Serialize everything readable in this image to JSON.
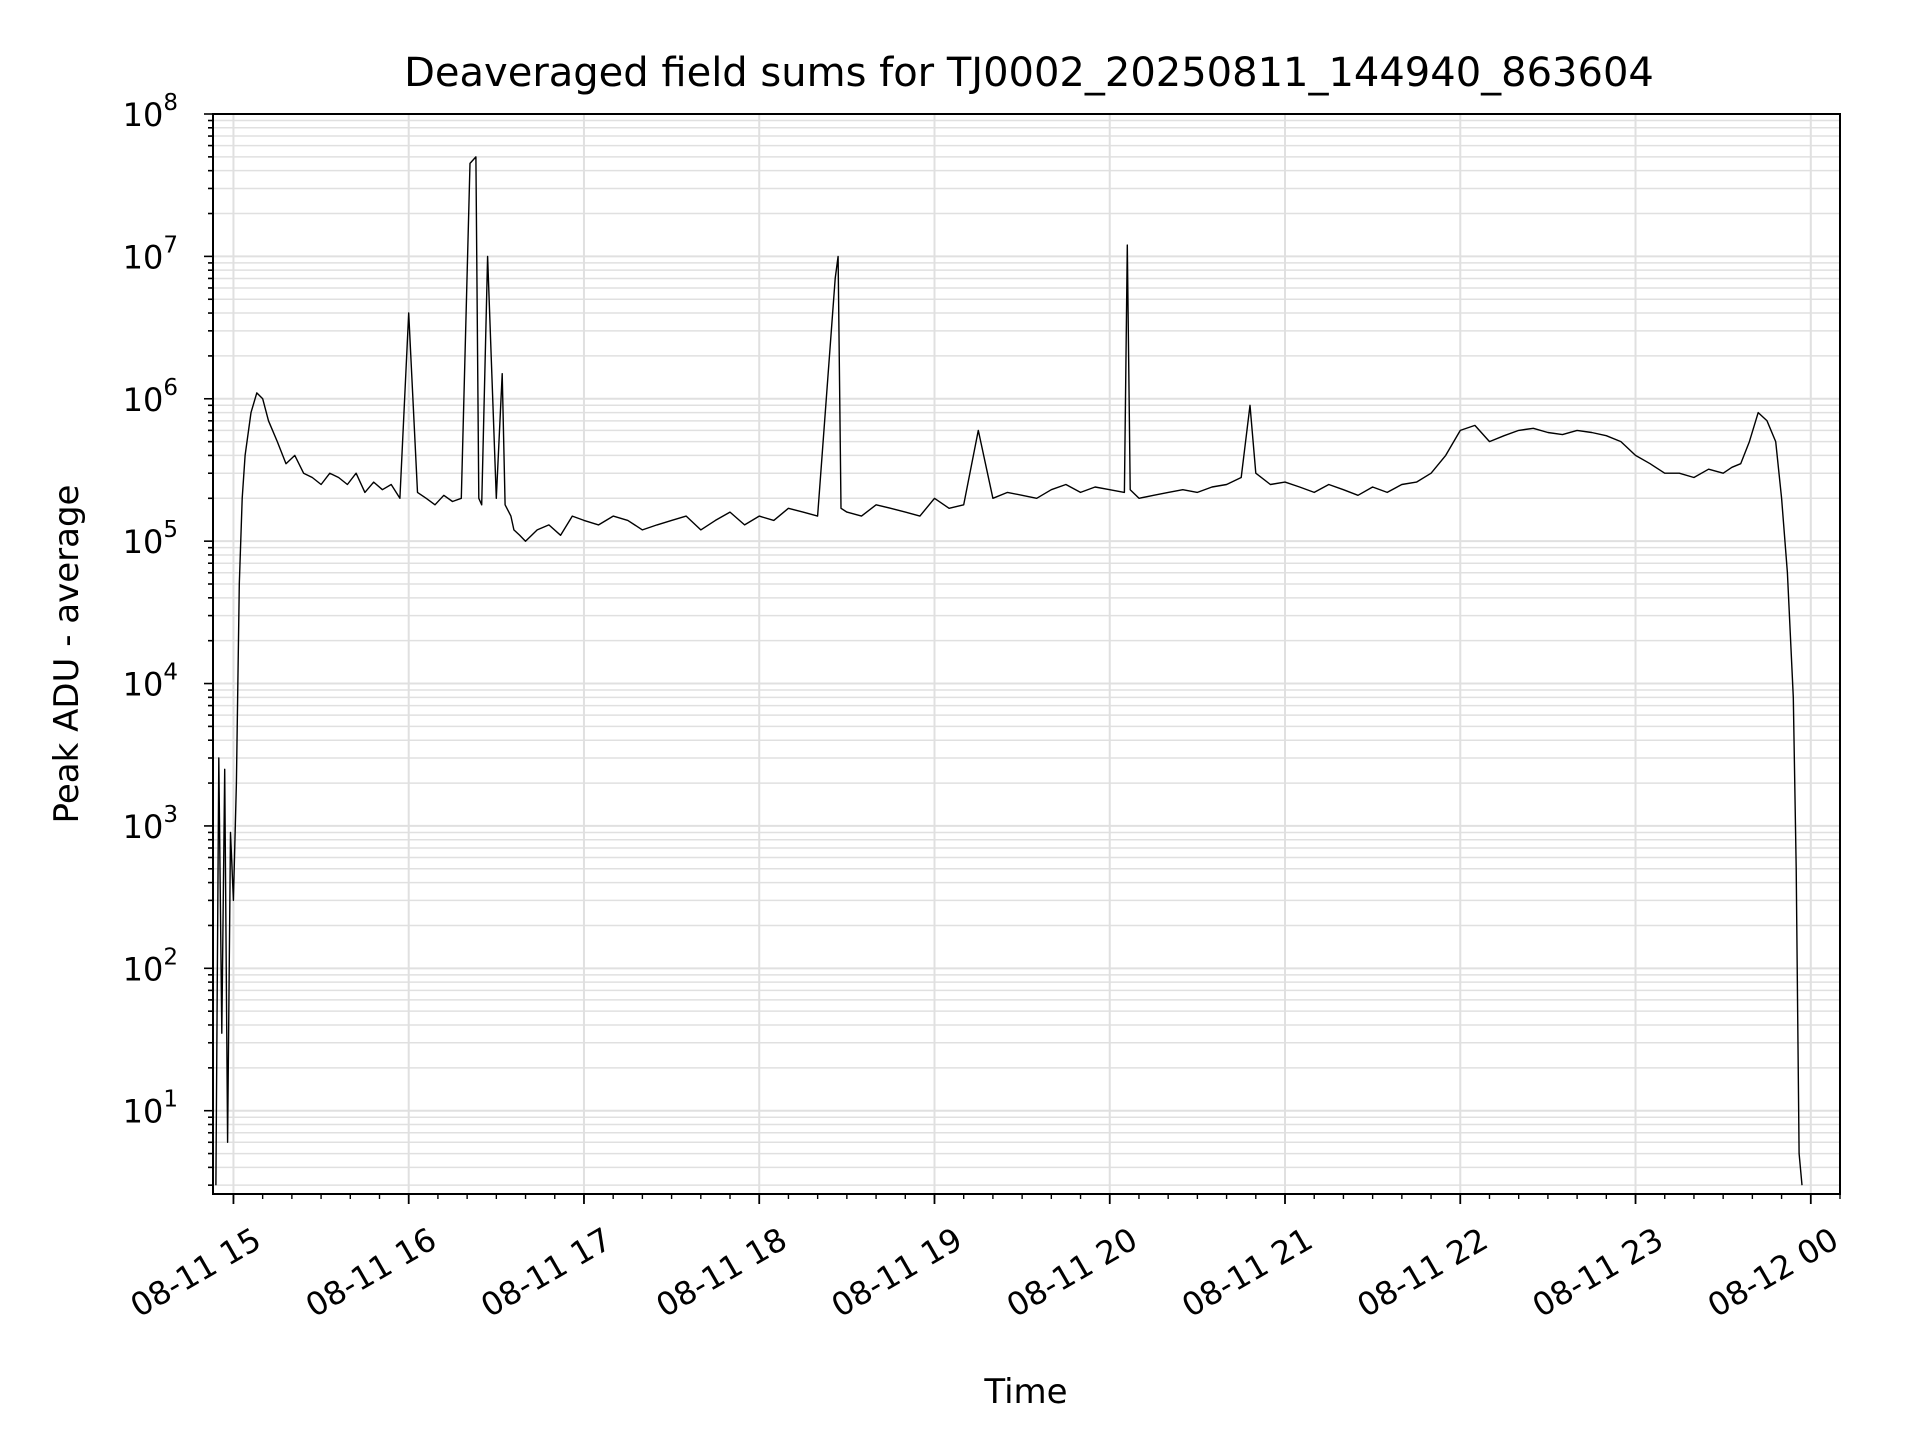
{
  "chart_data": {
    "type": "line",
    "title": "Deaveraged field sums for TJ0002_20250811_144940_863604",
    "xlabel": "Time",
    "ylabel": "Peak ADU - average",
    "yscale": "log",
    "xlim": [
      "2025-08-11 14:53",
      "2025-08-12 00:10"
    ],
    "ylim": [
      2.6,
      100000000
    ],
    "grid": true,
    "line_color": "#000000",
    "grid_color": "#e0e0e0",
    "x_ticks": [
      {
        "value": "2025-08-11 15:00",
        "label": "08-11 15"
      },
      {
        "value": "2025-08-11 16:00",
        "label": "08-11 16"
      },
      {
        "value": "2025-08-11 17:00",
        "label": "08-11 17"
      },
      {
        "value": "2025-08-11 18:00",
        "label": "08-11 18"
      },
      {
        "value": "2025-08-11 19:00",
        "label": "08-11 19"
      },
      {
        "value": "2025-08-11 20:00",
        "label": "08-11 20"
      },
      {
        "value": "2025-08-11 21:00",
        "label": "08-11 21"
      },
      {
        "value": "2025-08-11 22:00",
        "label": "08-11 22"
      },
      {
        "value": "2025-08-11 23:00",
        "label": "08-11 23"
      },
      {
        "value": "2025-08-12 00:00",
        "label": "08-12 00"
      }
    ],
    "y_ticks": [
      {
        "value": 10,
        "mantissa": "10",
        "exponent": "1"
      },
      {
        "value": 100,
        "mantissa": "10",
        "exponent": "2"
      },
      {
        "value": 1000,
        "mantissa": "10",
        "exponent": "3"
      },
      {
        "value": 10000,
        "mantissa": "10",
        "exponent": "4"
      },
      {
        "value": 100000,
        "mantissa": "10",
        "exponent": "5"
      },
      {
        "value": 1000000,
        "mantissa": "10",
        "exponent": "6"
      },
      {
        "value": 10000000,
        "mantissa": "10",
        "exponent": "7"
      },
      {
        "value": 100000000,
        "mantissa": "10",
        "exponent": "8"
      }
    ],
    "series": [
      {
        "x": [
          "2025-08-11 14:54",
          "2025-08-11 14:55",
          "2025-08-11 14:56",
          "2025-08-11 14:57",
          "2025-08-11 14:58",
          "2025-08-11 14:59",
          "2025-08-11 15:00",
          "2025-08-11 15:01",
          "2025-08-11 15:02",
          "2025-08-11 15:03",
          "2025-08-11 15:04",
          "2025-08-11 15:06",
          "2025-08-11 15:08",
          "2025-08-11 15:10",
          "2025-08-11 15:12",
          "2025-08-11 15:15",
          "2025-08-11 15:18",
          "2025-08-11 15:21",
          "2025-08-11 15:24",
          "2025-08-11 15:27",
          "2025-08-11 15:30",
          "2025-08-11 15:33",
          "2025-08-11 15:36",
          "2025-08-11 15:39",
          "2025-08-11 15:42",
          "2025-08-11 15:45",
          "2025-08-11 15:48",
          "2025-08-11 15:51",
          "2025-08-11 15:54",
          "2025-08-11 15:57",
          "2025-08-11 16:00",
          "2025-08-11 16:03",
          "2025-08-11 16:06",
          "2025-08-11 16:09",
          "2025-08-11 16:12",
          "2025-08-11 16:15",
          "2025-08-11 16:18",
          "2025-08-11 16:21",
          "2025-08-11 16:23",
          "2025-08-11 16:24",
          "2025-08-11 16:25",
          "2025-08-11 16:27",
          "2025-08-11 16:30",
          "2025-08-11 16:32",
          "2025-08-11 16:33",
          "2025-08-11 16:35",
          "2025-08-11 16:36",
          "2025-08-11 16:38",
          "2025-08-11 16:40",
          "2025-08-11 16:44",
          "2025-08-11 16:48",
          "2025-08-11 16:52",
          "2025-08-11 16:56",
          "2025-08-11 17:00",
          "2025-08-11 17:05",
          "2025-08-11 17:10",
          "2025-08-11 17:15",
          "2025-08-11 17:20",
          "2025-08-11 17:25",
          "2025-08-11 17:30",
          "2025-08-11 17:35",
          "2025-08-11 17:40",
          "2025-08-11 17:45",
          "2025-08-11 17:50",
          "2025-08-11 17:55",
          "2025-08-11 18:00",
          "2025-08-11 18:05",
          "2025-08-11 18:10",
          "2025-08-11 18:15",
          "2025-08-11 18:20",
          "2025-08-11 18:26",
          "2025-08-11 18:27",
          "2025-08-11 18:28",
          "2025-08-11 18:30",
          "2025-08-11 18:35",
          "2025-08-11 18:40",
          "2025-08-11 18:45",
          "2025-08-11 18:50",
          "2025-08-11 18:55",
          "2025-08-11 19:00",
          "2025-08-11 19:05",
          "2025-08-11 19:10",
          "2025-08-11 19:15",
          "2025-08-11 19:20",
          "2025-08-11 19:25",
          "2025-08-11 19:30",
          "2025-08-11 19:35",
          "2025-08-11 19:40",
          "2025-08-11 19:45",
          "2025-08-11 19:50",
          "2025-08-11 19:55",
          "2025-08-11 20:00",
          "2025-08-11 20:05",
          "2025-08-11 20:06",
          "2025-08-11 20:07",
          "2025-08-11 20:10",
          "2025-08-11 20:15",
          "2025-08-11 20:20",
          "2025-08-11 20:25",
          "2025-08-11 20:30",
          "2025-08-11 20:35",
          "2025-08-11 20:40",
          "2025-08-11 20:45",
          "2025-08-11 20:48",
          "2025-08-11 20:50",
          "2025-08-11 20:55",
          "2025-08-11 21:00",
          "2025-08-11 21:05",
          "2025-08-11 21:10",
          "2025-08-11 21:15",
          "2025-08-11 21:20",
          "2025-08-11 21:25",
          "2025-08-11 21:30",
          "2025-08-11 21:35",
          "2025-08-11 21:40",
          "2025-08-11 21:45",
          "2025-08-11 21:50",
          "2025-08-11 21:55",
          "2025-08-11 22:00",
          "2025-08-11 22:05",
          "2025-08-11 22:10",
          "2025-08-11 22:15",
          "2025-08-11 22:20",
          "2025-08-11 22:25",
          "2025-08-11 22:30",
          "2025-08-11 22:35",
          "2025-08-11 22:40",
          "2025-08-11 22:45",
          "2025-08-11 22:50",
          "2025-08-11 22:55",
          "2025-08-11 23:00",
          "2025-08-11 23:05",
          "2025-08-11 23:10",
          "2025-08-11 23:15",
          "2025-08-11 23:20",
          "2025-08-11 23:25",
          "2025-08-11 23:30",
          "2025-08-11 23:33",
          "2025-08-11 23:36",
          "2025-08-11 23:39",
          "2025-08-11 23:42",
          "2025-08-11 23:45",
          "2025-08-11 23:48",
          "2025-08-11 23:50",
          "2025-08-11 23:52",
          "2025-08-11 23:54",
          "2025-08-11 23:55",
          "2025-08-11 23:56",
          "2025-08-11 23:57"
        ],
        "y": [
          3,
          3000,
          35,
          2500,
          6,
          900,
          300,
          2000,
          50000,
          200000,
          400000,
          800000,
          1100000,
          1000000,
          700000,
          500000,
          350000,
          400000,
          300000,
          280000,
          250000,
          300000,
          280000,
          250000,
          300000,
          220000,
          260000,
          230000,
          250000,
          200000,
          4000000,
          220000,
          200000,
          180000,
          210000,
          190000,
          200000,
          45000000,
          50000000,
          200000,
          180000,
          10000000,
          200000,
          1500000,
          180000,
          150000,
          120000,
          110000,
          100000,
          120000,
          130000,
          110000,
          150000,
          140000,
          130000,
          150000,
          140000,
          120000,
          130000,
          140000,
          150000,
          120000,
          140000,
          160000,
          130000,
          150000,
          140000,
          170000,
          160000,
          150000,
          7000000,
          10000000,
          170000,
          160000,
          150000,
          180000,
          170000,
          160000,
          150000,
          200000,
          170000,
          180000,
          600000,
          200000,
          220000,
          210000,
          200000,
          230000,
          250000,
          220000,
          240000,
          230000,
          220000,
          12000000,
          230000,
          200000,
          210000,
          220000,
          230000,
          220000,
          240000,
          250000,
          280000,
          900000,
          300000,
          250000,
          260000,
          240000,
          220000,
          250000,
          230000,
          210000,
          240000,
          220000,
          250000,
          260000,
          300000,
          400000,
          600000,
          650000,
          500000,
          550000,
          600000,
          620000,
          580000,
          560000,
          600000,
          580000,
          550000,
          500000,
          400000,
          350000,
          300000,
          300000,
          280000,
          320000,
          300000,
          330000,
          350000,
          500000,
          800000,
          700000,
          500000,
          200000,
          60000,
          8000,
          500,
          5,
          3
        ]
      }
    ]
  }
}
